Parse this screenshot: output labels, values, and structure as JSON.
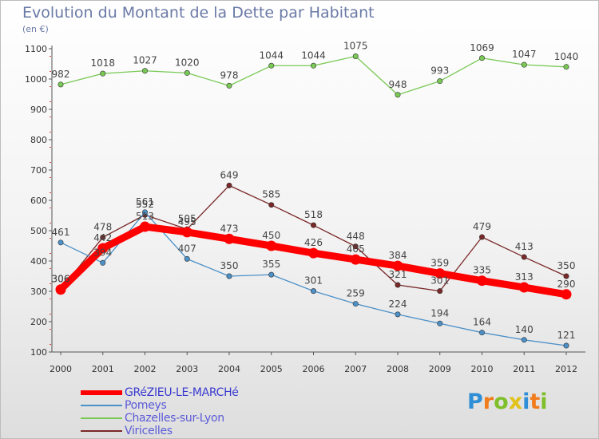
{
  "title": "Evolution du Montant de la Dette par Habitant",
  "subtitle": "(en €)",
  "chart_data": {
    "type": "line",
    "title": "Evolution du Montant de la Dette par Habitant",
    "ylabel": "(en €)",
    "xlabel": "",
    "x": [
      "2000",
      "2001",
      "2002",
      "2003",
      "2004",
      "2005",
      "2006",
      "2007",
      "2008",
      "2009",
      "2010",
      "2011",
      "2012"
    ],
    "ylim": [
      100,
      1100
    ],
    "yticks": [
      100,
      200,
      300,
      400,
      500,
      600,
      700,
      800,
      900,
      1000,
      1100
    ],
    "grid": false,
    "legend_position": "bottom-left",
    "series": [
      {
        "name": "GRéZIEU-LE-MARCHé",
        "color": "#ff0000",
        "values": [
          306,
          442,
          513,
          495,
          473,
          450,
          426,
          405,
          384,
          359,
          335,
          313,
          290
        ],
        "labels": [
          "306",
          "442",
          "513",
          "495",
          "473",
          "450",
          "426",
          "405",
          "384",
          "359",
          "335",
          "313",
          "290"
        ]
      },
      {
        "name": "Pomeys",
        "color": "#4c90c8",
        "values": [
          461,
          394,
          561,
          407,
          350,
          355,
          301,
          259,
          224,
          194,
          164,
          140,
          121
        ],
        "labels": [
          "461",
          "394",
          "561",
          "407",
          "350",
          "355",
          "301",
          "259",
          "224",
          "194",
          "164",
          "140",
          "121"
        ]
      },
      {
        "name": "Chazelles-sur-Lyon",
        "color": "#79c955",
        "values": [
          982,
          1018,
          1027,
          1020,
          978,
          1044,
          1044,
          1075,
          948,
          993,
          1069,
          1047,
          1040
        ],
        "labels": [
          "982",
          "1018",
          "1027",
          "1020",
          "978",
          "1044",
          "1044",
          "1075",
          "948",
          "993",
          "1069",
          "1047",
          "1040"
        ]
      },
      {
        "name": "Viricelles",
        "color": "#7a2828",
        "values": [
          306,
          478,
          552,
          505,
          649,
          585,
          518,
          448,
          321,
          301,
          479,
          413,
          350
        ],
        "labels": [
          "306",
          "478",
          "552",
          "505",
          "649",
          "585",
          "518",
          "448",
          "321",
          "301",
          "479",
          "413",
          "350"
        ]
      }
    ]
  },
  "legend": {
    "items": [
      {
        "label": "GRéZIEU-LE-MARCHé",
        "color": "#ff0000"
      },
      {
        "label": "Pomeys",
        "color": "#4c90c8"
      },
      {
        "label": "Chazelles-sur-Lyon",
        "color": "#79c955"
      },
      {
        "label": "Viricelles",
        "color": "#7a2828"
      }
    ]
  },
  "brand": {
    "letters": [
      "P",
      "r",
      "o",
      "x",
      "i",
      "t",
      "i"
    ],
    "colors": [
      "#2e8fd6",
      "#f07c1b",
      "#7fbf2a",
      "#e0c21a",
      "#2e8fd6",
      "#f07c1b",
      "#7fbf2a"
    ]
  }
}
